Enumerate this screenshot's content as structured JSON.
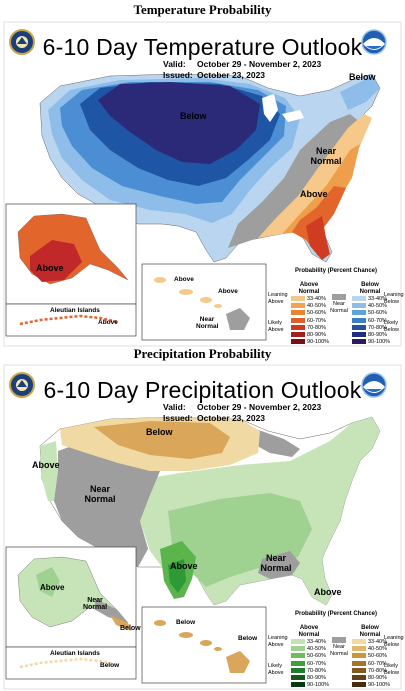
{
  "temperature": {
    "section_title": "Temperature Probability",
    "title": "6-10 Day Temperature Outlook",
    "valid_label": "Valid:",
    "valid": "October 29 - November 2, 2023",
    "issued_label": "Issued:",
    "issued": "October 23, 2023",
    "labels": {
      "below_main": "Below",
      "below_ne": "Below",
      "near_normal": "Near Normal",
      "above_se": "Above",
      "above_ak": "Above",
      "aleutian": "Aleutian Islands",
      "above_aleutian": "Above",
      "hi_above_1": "Above",
      "hi_above_2": "Above",
      "hi_near_normal": "Near Normal"
    },
    "legend": {
      "title": "Probability (Percent Chance)",
      "left_header": "Above Normal",
      "right_header": "Below Normal",
      "mid": "Near Normal",
      "leaning_above": "Leaning Above",
      "likely_above": "Likely Above",
      "leaning_below": "Leaning Below",
      "likely_below": "Likely Below",
      "ranges": [
        "33-40%",
        "40-50%",
        "50-60%",
        "60-70%",
        "70-80%",
        "80-90%",
        "90-100%"
      ],
      "above_colors": [
        "#f5c68a",
        "#f0a454",
        "#e8832e",
        "#e0602a",
        "#cc3a22",
        "#a32020",
        "#7a1010"
      ],
      "below_colors": [
        "#b8d4ee",
        "#8fbde6",
        "#5ea3dc",
        "#3b7fc7",
        "#25529f",
        "#1e2f80",
        "#2a1a5e"
      ]
    },
    "colors": {
      "below_core": "#2b2a78",
      "below_2": "#1f55a5",
      "below_3": "#4c8ed4",
      "below_4": "#8dbde8",
      "below_5": "#b9d5ef",
      "near_normal": "#9e9e9e",
      "above_1": "#f6c98a",
      "above_2": "#ef9f4c",
      "above_3": "#e2662c",
      "above_4": "#cf3c22"
    }
  },
  "precipitation": {
    "section_title": "Precipitation Probability",
    "title": "6-10 Day Precipitation Outlook",
    "valid_label": "Valid:",
    "valid": "October 29 - November 2, 2023",
    "issued_label": "Issued:",
    "issued": "October 23, 2023",
    "labels": {
      "below_north": "Below",
      "above_west": "Above",
      "near_normal_west": "Near Normal",
      "above_tx": "Above",
      "near_normal_se": "Near Normal",
      "above_fl": "Above",
      "above_ak": "Above",
      "near_normal_ak": "Near Normal",
      "below_ak": "Below",
      "aleutian": "Aleutian Islands",
      "below_aleutian": "Below",
      "hi_below_1": "Below",
      "hi_below_2": "Below"
    },
    "legend": {
      "title": "Probability (Percent Chance)",
      "left_header": "Above Normal",
      "right_header": "Below Normal",
      "mid": "Near Normal",
      "leaning_above": "Leaning Above",
      "likely_above": "Likely Above",
      "leaning_below": "Leaning Below",
      "likely_below": "Likely Below",
      "ranges": [
        "33-40%",
        "40-50%",
        "50-60%",
        "60-70%",
        "70-80%",
        "80-90%",
        "90-100%"
      ],
      "above_colors": [
        "#c3e3b5",
        "#9fd191",
        "#6fbc5e",
        "#3ea03a",
        "#1f7d2b",
        "#115a1c",
        "#083812"
      ],
      "below_colors": [
        "#f2d9a4",
        "#e2b768",
        "#cc9538",
        "#a8722a",
        "#87571f",
        "#653f17",
        "#452a10"
      ]
    },
    "colors": {
      "below_1": "#f1d9a3",
      "below_2": "#d9a65a",
      "near_normal": "#9e9e9e",
      "above_1": "#c6e4b8",
      "above_2": "#9fd191",
      "above_3": "#5cb54c",
      "above_4": "#2e9a35",
      "white": "#ffffff"
    }
  },
  "logos": {
    "left": "Department of Commerce seal",
    "right": "NOAA"
  }
}
